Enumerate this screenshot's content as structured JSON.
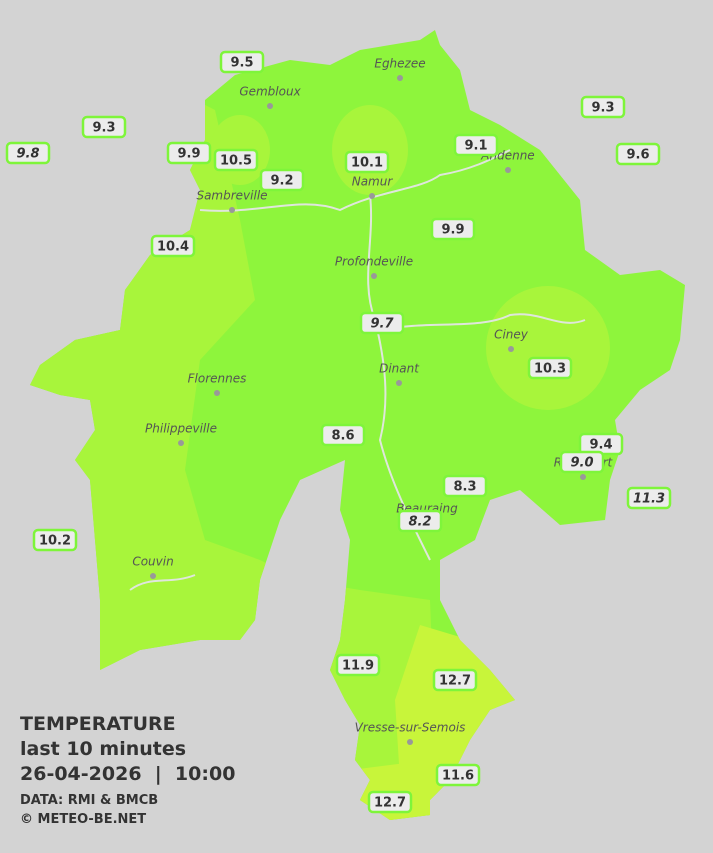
{
  "legend": {
    "title": "TEMPERATURE",
    "period": "last 10 minutes",
    "datetime": "26-04-2026  |  10:00",
    "source": "DATA: RMI & BMCB",
    "copyright": "© METEO-BE.NET"
  },
  "cities": [
    "Eghezee",
    "Gembloux",
    "Andenne",
    "Namur",
    "Sambreville",
    "Profondeville",
    "Ciney",
    "Dinant",
    "Florennes",
    "Philippeville",
    "Rochefort",
    "Beauraing",
    "Couvin",
    "Vresse-sur-Semois"
  ],
  "stations": [
    "9.5",
    "9.3",
    "9.8",
    "9.9",
    "10.5",
    "9.2",
    "10.1",
    "9.1",
    "9.3",
    "9.6",
    "10.4",
    "9.9",
    "9.7",
    "10.3",
    "8.6",
    "9.4",
    "9.0",
    "8.3",
    "11.3",
    "8.2",
    "10.2",
    "11.9",
    "12.7",
    "11.6",
    "12.7"
  ]
}
